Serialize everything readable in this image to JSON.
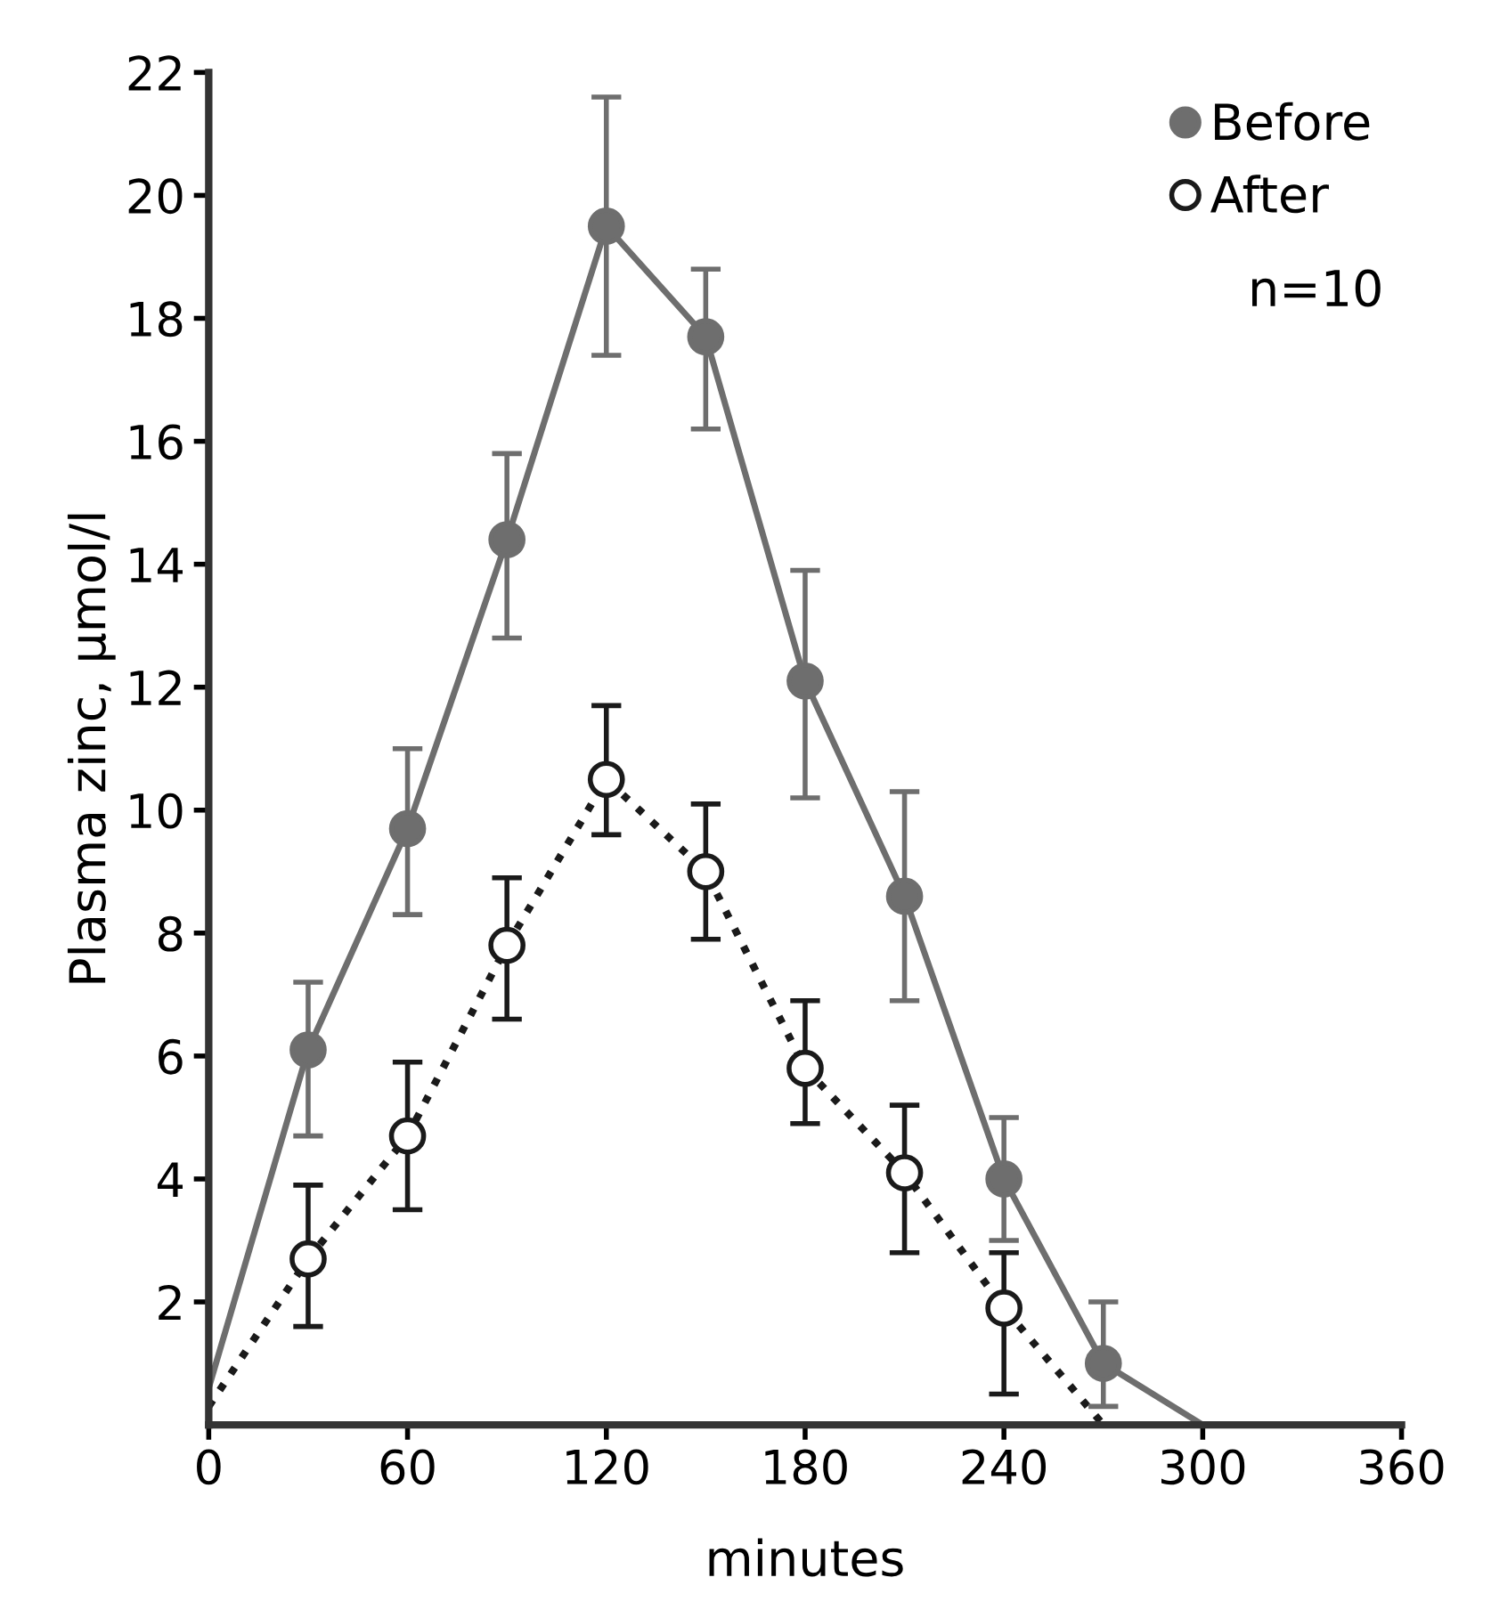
{
  "chart_data": {
    "type": "line",
    "xlabel": "minutes",
    "ylabel": "Plasma zinc, μmol/l",
    "xlim": [
      0,
      360
    ],
    "xticks": [
      0,
      60,
      120,
      180,
      240,
      300,
      360
    ],
    "ylim": [
      0,
      22
    ],
    "yticks": [
      2,
      4,
      6,
      8,
      10,
      12,
      14,
      16,
      18,
      20,
      22
    ],
    "legend": "top right",
    "grid": false,
    "marker": "circle",
    "annotations": [
      "n=10"
    ],
    "series": [
      {
        "name": "Before",
        "color": "#6e6e6e",
        "line_style": "solid",
        "x": [
          0,
          30,
          60,
          90,
          120,
          150,
          180,
          210,
          240,
          270,
          300
        ],
        "values": [
          0.6,
          6.1,
          9.7,
          14.4,
          19.5,
          17.7,
          12.1,
          8.6,
          4.0,
          1.0,
          0
        ],
        "errors": [
          null,
          [
            4.7,
            7.2
          ],
          [
            8.3,
            11.0
          ],
          [
            12.8,
            15.8
          ],
          [
            17.4,
            21.6
          ],
          [
            16.2,
            18.8
          ],
          [
            10.2,
            13.9
          ],
          [
            6.9,
            10.3
          ],
          [
            3.0,
            5.0
          ],
          [
            0.3,
            2.0
          ],
          null
        ]
      },
      {
        "name": "After",
        "color": "#1a1a1a",
        "line_style": "dotted",
        "x": [
          0,
          30,
          60,
          90,
          120,
          150,
          180,
          210,
          240,
          270
        ],
        "values": [
          0.3,
          2.7,
          4.7,
          7.8,
          10.5,
          9.0,
          5.8,
          4.1,
          1.9,
          0
        ],
        "errors": [
          null,
          [
            1.6,
            3.9
          ],
          [
            3.5,
            5.9
          ],
          [
            6.6,
            8.9
          ],
          [
            9.6,
            11.7
          ],
          [
            7.9,
            10.1
          ],
          [
            4.9,
            6.9
          ],
          [
            2.8,
            5.2
          ],
          [
            0.5,
            2.8
          ],
          null
        ]
      }
    ]
  }
}
